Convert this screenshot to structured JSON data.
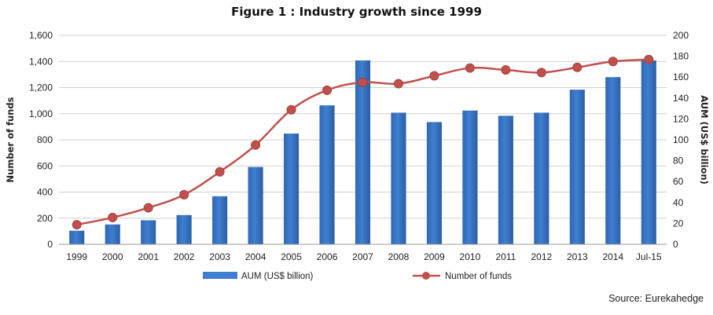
{
  "title": "Figure 1 : Industry growth since 1999",
  "source": "Source: Eurekahedge",
  "chart_data": {
    "type": "bar",
    "categories": [
      "1999",
      "2000",
      "2001",
      "2002",
      "2003",
      "2004",
      "2005",
      "2006",
      "2007",
      "2008",
      "2009",
      "2010",
      "2011",
      "2012",
      "2013",
      "2014",
      "Jul-15"
    ],
    "series": [
      {
        "name": "AUM (US$ billion)",
        "type": "bar",
        "axis": "right",
        "color": "#3f7fcf",
        "values": [
          13,
          19,
          23,
          28,
          46,
          74,
          106,
          133,
          176,
          126,
          117,
          128,
          123,
          126,
          148,
          160,
          176
        ]
      },
      {
        "name": "Number of funds",
        "type": "line",
        "axis": "left",
        "color": "#c0504d",
        "values": [
          150,
          205,
          280,
          380,
          555,
          760,
          1030,
          1180,
          1240,
          1230,
          1290,
          1350,
          1335,
          1315,
          1355,
          1400,
          1415
        ]
      }
    ],
    "ylabel_left": "Number of funds",
    "ylabel_right": "AUM (US$ billion)",
    "ylim_left": [
      0,
      1600
    ],
    "yticks_left": [
      "0",
      "200",
      "400",
      "600",
      "800",
      "1,000",
      "1,200",
      "1,400",
      "1,600"
    ],
    "ylim_right": [
      0,
      200
    ],
    "yticks_right": [
      "0",
      "20",
      "40",
      "60",
      "80",
      "100",
      "120",
      "140",
      "160",
      "180",
      "200"
    ],
    "grid": true,
    "legend": "bottom"
  }
}
